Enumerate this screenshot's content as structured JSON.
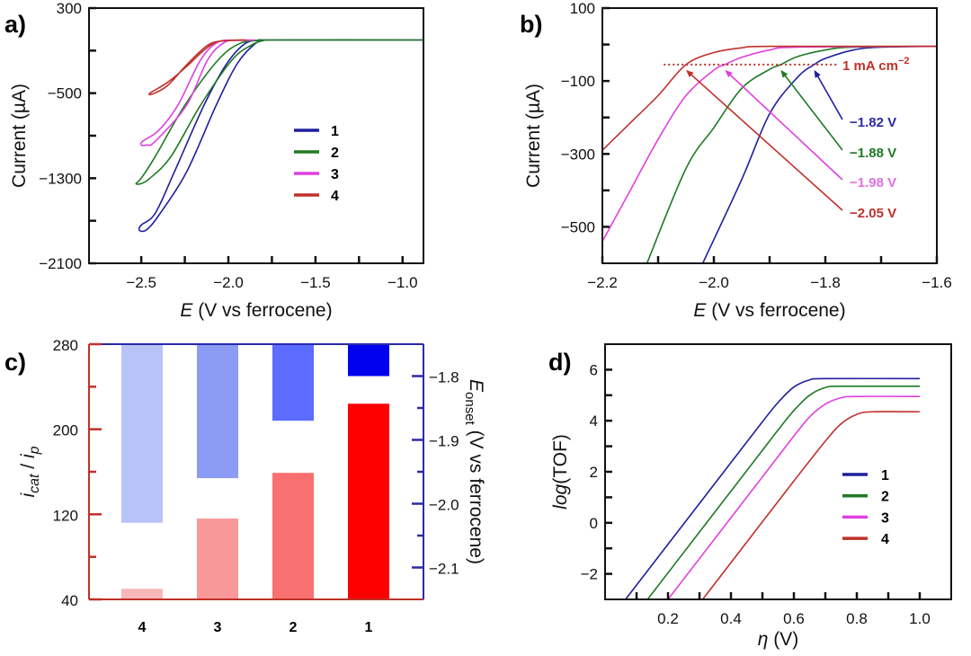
{
  "chart_data": [
    {
      "panel_label": "a)",
      "type": "line",
      "xlabel": {
        "symbol": "E",
        "text": " (V vs ferrocene)"
      },
      "ylabel": "Current (µA)",
      "xlim": [
        -2.8,
        -0.88
      ],
      "ylim": [
        -2100,
        300
      ],
      "x_ticks": [
        -2.5,
        -2.0,
        -1.5,
        -1.0
      ],
      "x_tick_labels": [
        "−2.5",
        "−2.0",
        "−1.5",
        "−1.0"
      ],
      "x_minor_ticks": [
        -2.25,
        -1.75,
        -1.25
      ],
      "y_ticks": [
        300,
        -500,
        -1300,
        -2100
      ],
      "y_tick_labels": [
        "300",
        "−500",
        "−1300",
        "−2100"
      ],
      "y_minor_ticks": [
        -100,
        -900,
        -1700
      ],
      "grid": false,
      "legend": {
        "placement": "center-right"
      },
      "series": [
        {
          "name": "1",
          "color": "#1f1f9e",
          "points": [
            [
              -0.88,
              0
            ],
            [
              -1.75,
              0
            ],
            [
              -1.8,
              -5
            ],
            [
              -1.85,
              -40
            ],
            [
              -1.95,
              -225
            ],
            [
              -2.07,
              -614
            ],
            [
              -2.24,
              -1241
            ],
            [
              -2.4,
              -1650
            ],
            [
              -2.47,
              -1785
            ],
            [
              -2.51,
              -1791
            ],
            [
              -2.5,
              -1740
            ],
            [
              -2.42,
              -1630
            ],
            [
              -2.31,
              -1241
            ],
            [
              -2.14,
              -614
            ],
            [
              -2.01,
              -225
            ],
            [
              -1.9,
              -30
            ],
            [
              -1.8,
              -3
            ],
            [
              -1.75,
              0
            ],
            [
              -0.88,
              0
            ]
          ]
        },
        {
          "name": "2",
          "color": "#1f7a24",
          "points": [
            [
              -0.88,
              0
            ],
            [
              -1.75,
              0
            ],
            [
              -1.8,
              -5
            ],
            [
              -1.87,
              -50
            ],
            [
              -1.98,
              -190
            ],
            [
              -2.16,
              -614
            ],
            [
              -2.33,
              -1097
            ],
            [
              -2.45,
              -1300
            ],
            [
              -2.5,
              -1350
            ],
            [
              -2.53,
              -1350
            ],
            [
              -2.5,
              -1300
            ],
            [
              -2.42,
              -1097
            ],
            [
              -2.25,
              -614
            ],
            [
              -2.06,
              -190
            ],
            [
              -1.93,
              -30
            ],
            [
              -1.8,
              -3
            ],
            [
              -1.75,
              0
            ],
            [
              -0.88,
              0
            ]
          ]
        },
        {
          "name": "3",
          "color": "#e040e0",
          "points": [
            [
              -1.85,
              0
            ],
            [
              -1.92,
              -3
            ],
            [
              -2.02,
              -20
            ],
            [
              -2.12,
              -190
            ],
            [
              -2.24,
              -614
            ],
            [
              -2.42,
              -953
            ],
            [
              -2.47,
              -987
            ],
            [
              -2.5,
              -987
            ],
            [
              -2.49,
              -950
            ],
            [
              -2.4,
              -850
            ],
            [
              -2.29,
              -614
            ],
            [
              -2.16,
              -190
            ],
            [
              -2.06,
              -20
            ],
            [
              -1.95,
              -3
            ],
            [
              -1.88,
              0
            ]
          ]
        },
        {
          "name": "4",
          "color": "#c0302a",
          "points": [
            [
              -1.9,
              0
            ],
            [
              -1.97,
              -3
            ],
            [
              -2.07,
              -20
            ],
            [
              -2.15,
              -110
            ],
            [
              -2.24,
              -250
            ],
            [
              -2.35,
              -400
            ],
            [
              -2.45,
              -500
            ],
            [
              -2.43,
              -505
            ],
            [
              -2.35,
              -430
            ],
            [
              -2.26,
              -270
            ],
            [
              -2.17,
              -120
            ],
            [
              -2.09,
              -25
            ],
            [
              -1.98,
              -3
            ],
            [
              -1.92,
              0
            ]
          ]
        }
      ]
    },
    {
      "panel_label": "b)",
      "type": "line",
      "xlabel": {
        "symbol": "E",
        "text": " (V vs ferrocene)"
      },
      "ylabel": "Current (µA)",
      "xlim": [
        -2.2,
        -1.6
      ],
      "ylim": [
        -600,
        100
      ],
      "x_ticks": [
        -2.2,
        -2.0,
        -1.8,
        -1.6
      ],
      "x_tick_labels": [
        "−2.2",
        "−2.0",
        "−1.8",
        "−1.6"
      ],
      "x_minor_ticks": [
        -2.1,
        -1.9,
        -1.7
      ],
      "y_ticks": [
        100,
        -100,
        -300,
        -500
      ],
      "y_tick_labels": [
        "100",
        "−100",
        "−300",
        "−500"
      ],
      "y_minor_ticks": [
        0,
        -200,
        -400
      ],
      "grid": false,
      "threshold": {
        "value": -55,
        "x_range": [
          -2.09,
          -1.78
        ],
        "label": "1 mA cm",
        "label_sup": "−2",
        "color": "#c0302a"
      },
      "series": [
        {
          "name": "1",
          "color": "#1f1f9e",
          "onset": -1.82,
          "onset_label": "−1.82 V",
          "label_color": "#2a2aa8",
          "points": [
            [
              -2.02,
              -600
            ],
            [
              -1.95,
              -370
            ],
            [
              -1.9,
              -190
            ],
            [
              -1.85,
              -90
            ],
            [
              -1.82,
              -55
            ],
            [
              -1.8,
              -38
            ],
            [
              -1.75,
              -15
            ],
            [
              -1.7,
              -7
            ],
            [
              -1.6,
              -5
            ]
          ]
        },
        {
          "name": "2",
          "color": "#1f7a24",
          "onset": -1.88,
          "onset_label": "−1.88 V",
          "label_color": "#1f7a24",
          "points": [
            [
              -2.12,
              -600
            ],
            [
              -2.05,
              -340
            ],
            [
              -2.0,
              -228
            ],
            [
              -1.95,
              -120
            ],
            [
              -1.9,
              -68
            ],
            [
              -1.88,
              -55
            ],
            [
              -1.85,
              -33
            ],
            [
              -1.8,
              -15
            ],
            [
              -1.75,
              -7
            ],
            [
              -1.6,
              -5
            ]
          ]
        },
        {
          "name": "3",
          "color": "#e040e0",
          "onset": -1.98,
          "onset_label": "−1.98 V",
          "label_color": "#e070e0",
          "points": [
            [
              -2.2,
              -540
            ],
            [
              -2.15,
              -400
            ],
            [
              -2.1,
              -260
            ],
            [
              -2.05,
              -140
            ],
            [
              -2.0,
              -70
            ],
            [
              -1.98,
              -55
            ],
            [
              -1.95,
              -35
            ],
            [
              -1.9,
              -15
            ],
            [
              -1.85,
              -7
            ],
            [
              -1.6,
              -5
            ]
          ]
        },
        {
          "name": "4",
          "color": "#c0302a",
          "onset": -2.05,
          "onset_label": "−2.05 V",
          "label_color": "#c0302a",
          "points": [
            [
              -2.2,
              -290
            ],
            [
              -2.15,
              -215
            ],
            [
              -2.1,
              -140
            ],
            [
              -2.05,
              -55
            ],
            [
              -2.0,
              -22
            ],
            [
              -1.95,
              -9
            ],
            [
              -1.9,
              -5
            ],
            [
              -1.6,
              -5
            ]
          ]
        }
      ]
    },
    {
      "panel_label": "c)",
      "type": "bar",
      "categories": [
        "4",
        "3",
        "2",
        "1"
      ],
      "left_axis": {
        "label_main": "i",
        "label_sub": "cat",
        "label_sep": " / ",
        "label_main2": "i",
        "label_sub2": "p",
        "color": "#c0302a",
        "ylim": [
          40,
          280
        ],
        "ticks": [
          40,
          120,
          200,
          280
        ],
        "tick_labels": [
          "40",
          "120",
          "200",
          "280"
        ],
        "minor_ticks": [
          80,
          160,
          240
        ]
      },
      "right_axis": {
        "label_main": "E",
        "label_sub": "onset",
        "label_text": " (V vs ferrocene)",
        "color": "#2a2aa8",
        "ylim": [
          -2.15,
          -1.75
        ],
        "ticks": [
          -1.8,
          -1.9,
          -2.0,
          -2.1
        ],
        "tick_labels": [
          "−1.8",
          "−1.9",
          "−2.0",
          "−2.1"
        ],
        "minor_ticks": [
          -1.85,
          -1.95,
          -2.05
        ]
      },
      "series": [
        {
          "axis": "left",
          "values": [
            50,
            116,
            159,
            224
          ],
          "colors": [
            "#f8b8b8",
            "#f89898",
            "#f87070",
            "#ff0000"
          ]
        },
        {
          "axis": "right",
          "values": [
            -2.03,
            -1.96,
            -1.87,
            -1.8
          ],
          "colors": [
            "#b8c3f8",
            "#8c9cf5",
            "#5b6cff",
            "#0000ee"
          ]
        }
      ]
    },
    {
      "panel_label": "d)",
      "type": "line",
      "xlabel": {
        "symbol": "η",
        "text": " (V)"
      },
      "ylabel": {
        "italic": "log",
        "text": "(TOF)"
      },
      "xlim": [
        0,
        1.1
      ],
      "ylim": [
        -3,
        7
      ],
      "x_ticks": [
        0.2,
        0.4,
        0.6,
        0.8,
        1.0
      ],
      "x_tick_labels": [
        "0.2",
        "0.4",
        "0.6",
        "0.8",
        "1.0"
      ],
      "x_minor_ticks": [
        0.1,
        0.3,
        0.5,
        0.7,
        0.9
      ],
      "y_ticks": [
        6,
        4,
        2,
        0,
        -2
      ],
      "y_tick_labels": [
        "6",
        "4",
        "2",
        "0",
        "−2"
      ],
      "y_minor_ticks": [
        5,
        3,
        1,
        -1
      ],
      "grid": false,
      "legend": {
        "placement": "bottom-right"
      },
      "series": [
        {
          "name": "1",
          "color": "#1f1f9e",
          "points": [
            [
              0.065,
              -3
            ],
            [
              0.2,
              -0.84
            ],
            [
              0.3,
              0.76
            ],
            [
              0.4,
              2.36
            ],
            [
              0.5,
              3.96
            ],
            [
              0.55,
              4.72
            ],
            [
              0.6,
              5.32
            ],
            [
              0.65,
              5.6
            ],
            [
              0.7,
              5.65
            ],
            [
              1.0,
              5.65
            ]
          ]
        },
        {
          "name": "2",
          "color": "#1f7a24",
          "points": [
            [
              0.135,
              -3
            ],
            [
              0.3,
              -0.36
            ],
            [
              0.4,
              1.24
            ],
            [
              0.5,
              2.84
            ],
            [
              0.55,
              3.64
            ],
            [
              0.6,
              4.4
            ],
            [
              0.65,
              5.0
            ],
            [
              0.7,
              5.3
            ],
            [
              0.75,
              5.35
            ],
            [
              1.0,
              5.35
            ]
          ]
        },
        {
          "name": "3",
          "color": "#e040e0",
          "points": [
            [
              0.2,
              -3
            ],
            [
              0.3,
              -1.4
            ],
            [
              0.4,
              0.2
            ],
            [
              0.5,
              1.8
            ],
            [
              0.6,
              3.4
            ],
            [
              0.65,
              4.15
            ],
            [
              0.7,
              4.65
            ],
            [
              0.75,
              4.9
            ],
            [
              0.8,
              4.95
            ],
            [
              1.0,
              4.95
            ]
          ]
        },
        {
          "name": "4",
          "color": "#c0302a",
          "points": [
            [
              0.31,
              -3
            ],
            [
              0.4,
              -1.56
            ],
            [
              0.5,
              0.04
            ],
            [
              0.6,
              1.64
            ],
            [
              0.7,
              3.2
            ],
            [
              0.75,
              3.88
            ],
            [
              0.8,
              4.25
            ],
            [
              0.85,
              4.35
            ],
            [
              1.0,
              4.35
            ]
          ]
        }
      ]
    }
  ]
}
